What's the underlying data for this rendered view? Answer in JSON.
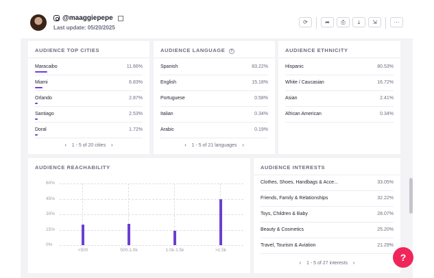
{
  "profile": {
    "handle": "@maaggiepepe",
    "last_update": "Last update: 05/20/2025"
  },
  "toolbar": {
    "icons": [
      "refresh-icon",
      "share-icon",
      "print-icon",
      "download-icon",
      "export-icon",
      "more-icon"
    ],
    "more_label": "···"
  },
  "top_cities": {
    "title": "AUDIENCE TOP CITIES",
    "rows": [
      {
        "label": "Maracaibo",
        "value": "11.66%",
        "pct": 11.66
      },
      {
        "label": "Miami",
        "value": "6.83%",
        "pct": 6.83
      },
      {
        "label": "Orlando",
        "value": "2.87%",
        "pct": 2.87
      },
      {
        "label": "Santiago",
        "value": "2.53%",
        "pct": 2.53
      },
      {
        "label": "Doral",
        "value": "1.72%",
        "pct": 1.72
      }
    ],
    "pager": "1 - 5 of 20 cities"
  },
  "language": {
    "title": "AUDIENCE LANGUAGE",
    "rows": [
      {
        "label": "Spanish",
        "value": "83.22%"
      },
      {
        "label": "English",
        "value": "15.18%"
      },
      {
        "label": "Portuguese",
        "value": "0.58%"
      },
      {
        "label": "Italian",
        "value": "0.34%"
      },
      {
        "label": "Arabic",
        "value": "0.19%"
      }
    ],
    "pager": "1 - 5 of 21 languages"
  },
  "ethnicity": {
    "title": "AUDIENCE ETHNICITY",
    "rows": [
      {
        "label": "Hispanic",
        "value": "80.53%"
      },
      {
        "label": "White / Caucasian",
        "value": "16.72%"
      },
      {
        "label": "Asian",
        "value": "2.41%"
      },
      {
        "label": "African American",
        "value": "0.34%"
      }
    ]
  },
  "reachability": {
    "title": "AUDIENCE REACHABILITY"
  },
  "chart_data": {
    "type": "bar",
    "categories": [
      "<500",
      "500-1.0k",
      "1.0k-1.5k",
      ">1.5k"
    ],
    "values": [
      20,
      21,
      14,
      45
    ],
    "ylim": [
      0,
      60
    ],
    "yticks": [
      "0%",
      "15%",
      "30%",
      "45%",
      "60%"
    ],
    "grid": true,
    "color": "#6a3fd1"
  },
  "interests": {
    "title": "AUDIENCE INTERESTS",
    "rows": [
      {
        "label": "Clothes, Shoes, Handbags & Acce...",
        "value": "33.05%"
      },
      {
        "label": "Friends, Family & Relationships",
        "value": "32.22%"
      },
      {
        "label": "Toys, Children & Baby",
        "value": "28.07%"
      },
      {
        "label": "Beauty & Cosmetics",
        "value": "25.20%"
      },
      {
        "label": "Travel, Tourism & Aviation",
        "value": "21.29%"
      }
    ],
    "pager": "1 - 5 of 27 interests"
  },
  "help": {
    "icon": "chat-help-icon",
    "glyph": "?"
  }
}
